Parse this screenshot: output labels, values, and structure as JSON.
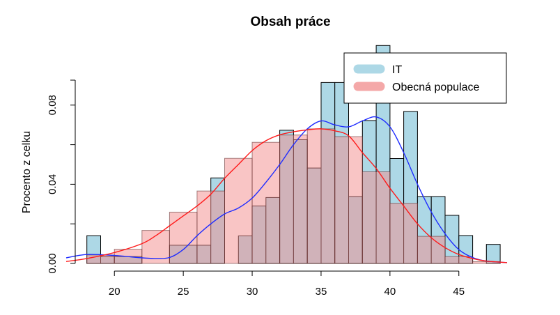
{
  "chart_data": {
    "type": "histogram",
    "title": "Obsah práce",
    "xlabel": "",
    "ylabel": "Procento z celku",
    "xlim": [
      16.5,
      48.5
    ],
    "ylim": [
      0,
      0.1
    ],
    "x_ticks": [
      20,
      25,
      30,
      35,
      40,
      45
    ],
    "x_tick_labels": [
      "20",
      "25",
      "30",
      "35",
      "40",
      "45"
    ],
    "y_ticks": [
      0.0,
      0.04,
      0.08
    ],
    "y_tick_labels": [
      "0.00",
      "0.04",
      "0.08"
    ],
    "legend": {
      "position": "top-right",
      "entries": [
        {
          "label": "IT",
          "color": "#add8e6"
        },
        {
          "label": "Obecná populace",
          "color": "#f4a8a8"
        }
      ]
    },
    "series": [
      {
        "name": "IT",
        "kind": "histogram",
        "fill": "#add8e6",
        "bins": [
          {
            "x0": 18,
            "x1": 19,
            "y": 0.014
          },
          {
            "x0": 19,
            "x1": 20,
            "y": 0.0035
          },
          {
            "x0": 20,
            "x1": 22,
            "y": 0.0035
          },
          {
            "x0": 24,
            "x1": 26,
            "y": 0.0092
          },
          {
            "x0": 26,
            "x1": 27,
            "y": 0.0092
          },
          {
            "x0": 27,
            "x1": 28,
            "y": 0.0432
          },
          {
            "x0": 29,
            "x1": 30,
            "y": 0.0139
          },
          {
            "x0": 30,
            "x1": 31,
            "y": 0.029
          },
          {
            "x0": 31,
            "x1": 32,
            "y": 0.0333
          },
          {
            "x0": 32,
            "x1": 33,
            "y": 0.0673
          },
          {
            "x0": 33,
            "x1": 34,
            "y": 0.0625
          },
          {
            "x0": 34,
            "x1": 35,
            "y": 0.0482
          },
          {
            "x0": 35,
            "x1": 36,
            "y": 0.0914
          },
          {
            "x0": 36,
            "x1": 37,
            "y": 0.0914
          },
          {
            "x0": 37,
            "x1": 38,
            "y": 0.0338
          },
          {
            "x0": 38,
            "x1": 39,
            "y": 0.0722
          },
          {
            "x0": 39,
            "x1": 40,
            "y": 0.1101
          },
          {
            "x0": 40,
            "x1": 41,
            "y": 0.053
          },
          {
            "x0": 41,
            "x1": 42,
            "y": 0.0768
          },
          {
            "x0": 42,
            "x1": 43,
            "y": 0.0338
          },
          {
            "x0": 43,
            "x1": 44,
            "y": 0.0338
          },
          {
            "x0": 44,
            "x1": 45,
            "y": 0.0243
          },
          {
            "x0": 45,
            "x1": 46,
            "y": 0.0141
          },
          {
            "x0": 47,
            "x1": 48,
            "y": 0.0096
          }
        ],
        "density": {
          "color": "#1f2cff",
          "x": [
            16.5,
            18,
            20,
            22,
            23,
            24,
            25,
            26,
            27,
            28,
            29,
            30,
            31,
            32,
            33,
            34,
            35,
            36,
            37,
            38,
            39,
            40,
            41,
            42,
            43,
            44,
            45,
            46,
            47,
            48.5
          ],
          "y": [
            0.0028,
            0.0045,
            0.004,
            0.0028,
            0.0025,
            0.003,
            0.007,
            0.014,
            0.02,
            0.025,
            0.028,
            0.033,
            0.041,
            0.05,
            0.06,
            0.068,
            0.072,
            0.07,
            0.069,
            0.072,
            0.074,
            0.069,
            0.056,
            0.04,
            0.026,
            0.015,
            0.007,
            0.003,
            0.0012,
            0.0004
          ]
        }
      },
      {
        "name": "Obecná populace",
        "kind": "histogram",
        "fill": "rgba(244,140,140,0.5)",
        "bins": [
          {
            "x0": 18,
            "x1": 20,
            "y": 0.0043
          },
          {
            "x0": 20,
            "x1": 22,
            "y": 0.0072
          },
          {
            "x0": 22,
            "x1": 24,
            "y": 0.0167
          },
          {
            "x0": 24,
            "x1": 26,
            "y": 0.0259
          },
          {
            "x0": 26,
            "x1": 28,
            "y": 0.0366
          },
          {
            "x0": 28,
            "x1": 30,
            "y": 0.0531
          },
          {
            "x0": 30,
            "x1": 32,
            "y": 0.0612
          },
          {
            "x0": 32,
            "x1": 34,
            "y": 0.0649
          },
          {
            "x0": 34,
            "x1": 36,
            "y": 0.068
          },
          {
            "x0": 36,
            "x1": 38,
            "y": 0.0641
          },
          {
            "x0": 38,
            "x1": 40,
            "y": 0.0463
          },
          {
            "x0": 40,
            "x1": 42,
            "y": 0.0304
          },
          {
            "x0": 42,
            "x1": 44,
            "y": 0.0137
          },
          {
            "x0": 44,
            "x1": 46,
            "y": 0.0035
          },
          {
            "x0": 46,
            "x1": 48,
            "y": 0.0009
          }
        ],
        "density": {
          "color": "#ff1a1a",
          "x": [
            16.5,
            18,
            20,
            22,
            23,
            24,
            25,
            26,
            27,
            28,
            29,
            30,
            31,
            32,
            33,
            34,
            35,
            36,
            37,
            38,
            39,
            40,
            41,
            42,
            43,
            44,
            45,
            46,
            47,
            48.5
          ],
          "y": [
            0.001,
            0.0025,
            0.0055,
            0.01,
            0.014,
            0.019,
            0.024,
            0.029,
            0.035,
            0.043,
            0.05,
            0.057,
            0.062,
            0.065,
            0.0665,
            0.0675,
            0.068,
            0.067,
            0.0645,
            0.056,
            0.048,
            0.038,
            0.029,
            0.02,
            0.013,
            0.008,
            0.0045,
            0.0025,
            0.0012,
            0.0004
          ]
        }
      }
    ]
  }
}
